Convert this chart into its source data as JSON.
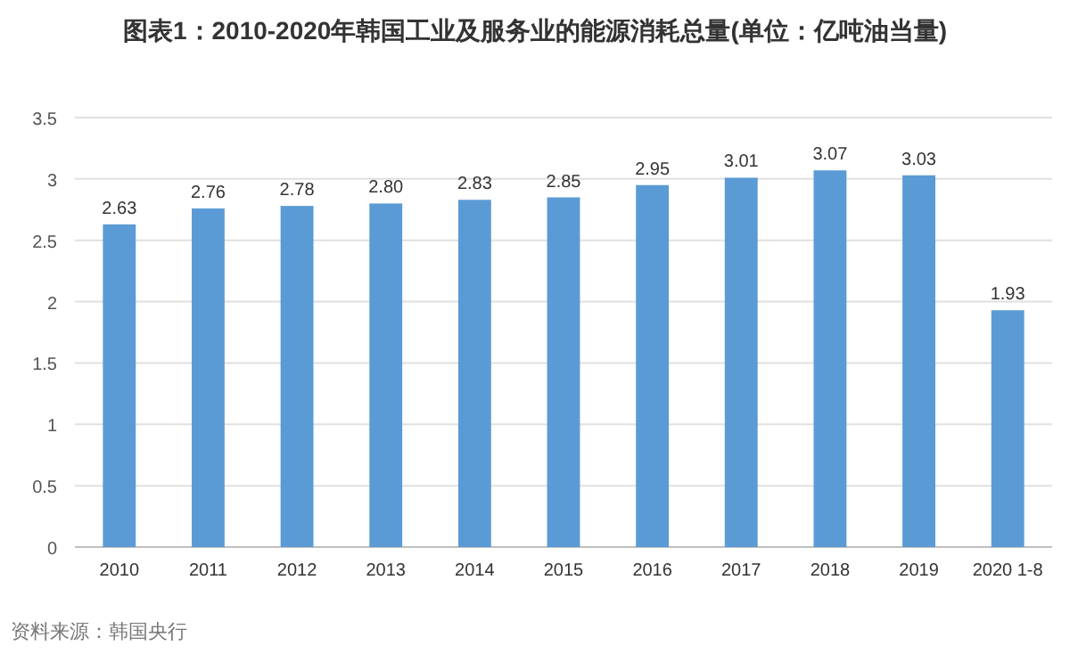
{
  "chart_data": {
    "type": "bar",
    "title": "图表1：2010-2020年韩国工业及服务业的能源消耗总量(单位：亿吨油当量)",
    "categories": [
      "2010",
      "2011",
      "2012",
      "2013",
      "2014",
      "2015",
      "2016",
      "2017",
      "2018",
      "2019",
      "2020 1-8"
    ],
    "values": [
      2.63,
      2.76,
      2.78,
      2.8,
      2.83,
      2.85,
      2.95,
      3.01,
      3.07,
      3.03,
      1.93
    ],
    "value_labels": [
      "2.63",
      "2.76",
      "2.78",
      "2.80",
      "2.83",
      "2.85",
      "2.95",
      "3.01",
      "3.07",
      "3.03",
      "1.93"
    ],
    "color": "#5b9bd5",
    "ylim": [
      0,
      3.5
    ],
    "yticks": [
      0,
      0.5,
      1,
      1.5,
      2,
      2.5,
      3,
      3.5
    ],
    "grid": "y",
    "annotations": [
      "资料来源：韩国央行"
    ]
  }
}
